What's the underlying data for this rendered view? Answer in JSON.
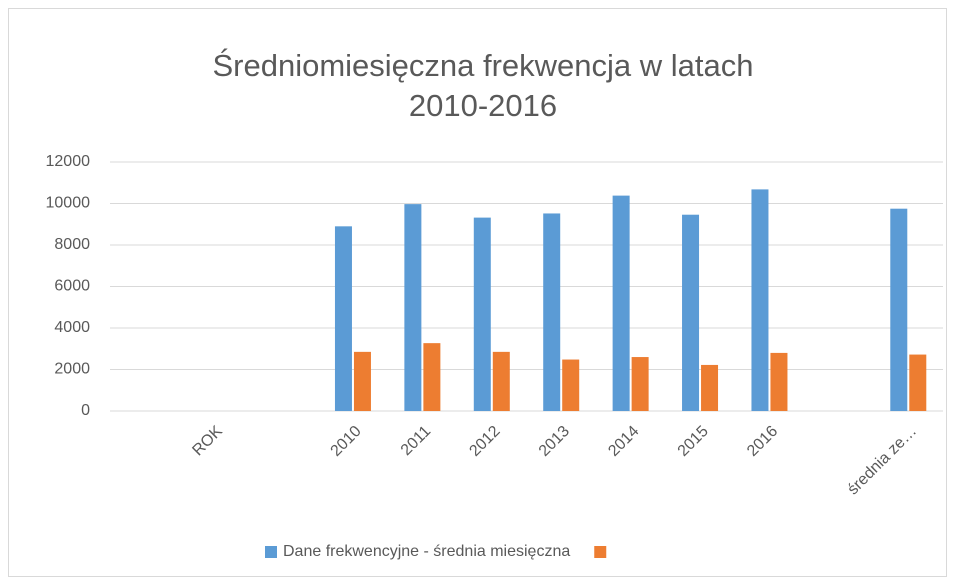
{
  "chart_data": {
    "type": "bar",
    "title_lines": [
      "Średniomiesięczna frekwencja w latach",
      "2010-2016"
    ],
    "categories": [
      null,
      "ROK",
      null,
      "2010",
      "2011",
      "2012",
      "2013",
      "2014",
      "2015",
      "2016",
      null,
      "średnia ze…"
    ],
    "series": [
      {
        "name": "Dane frekwencyjne - średnia miesięczna",
        "color": "#5b9bd5",
        "values": [
          null,
          null,
          null,
          8900,
          9970,
          9320,
          9520,
          10380,
          9460,
          10680,
          null,
          9750
        ]
      },
      {
        "name": null,
        "color": "#ed7d31",
        "values": [
          null,
          null,
          null,
          2850,
          3270,
          2850,
          2480,
          2600,
          2220,
          2800,
          null,
          2720
        ]
      }
    ],
    "ylim": [
      0,
      12000
    ],
    "yticks": [
      0,
      2000,
      4000,
      6000,
      8000,
      10000,
      12000
    ],
    "grid": true,
    "legend": "bottom"
  }
}
